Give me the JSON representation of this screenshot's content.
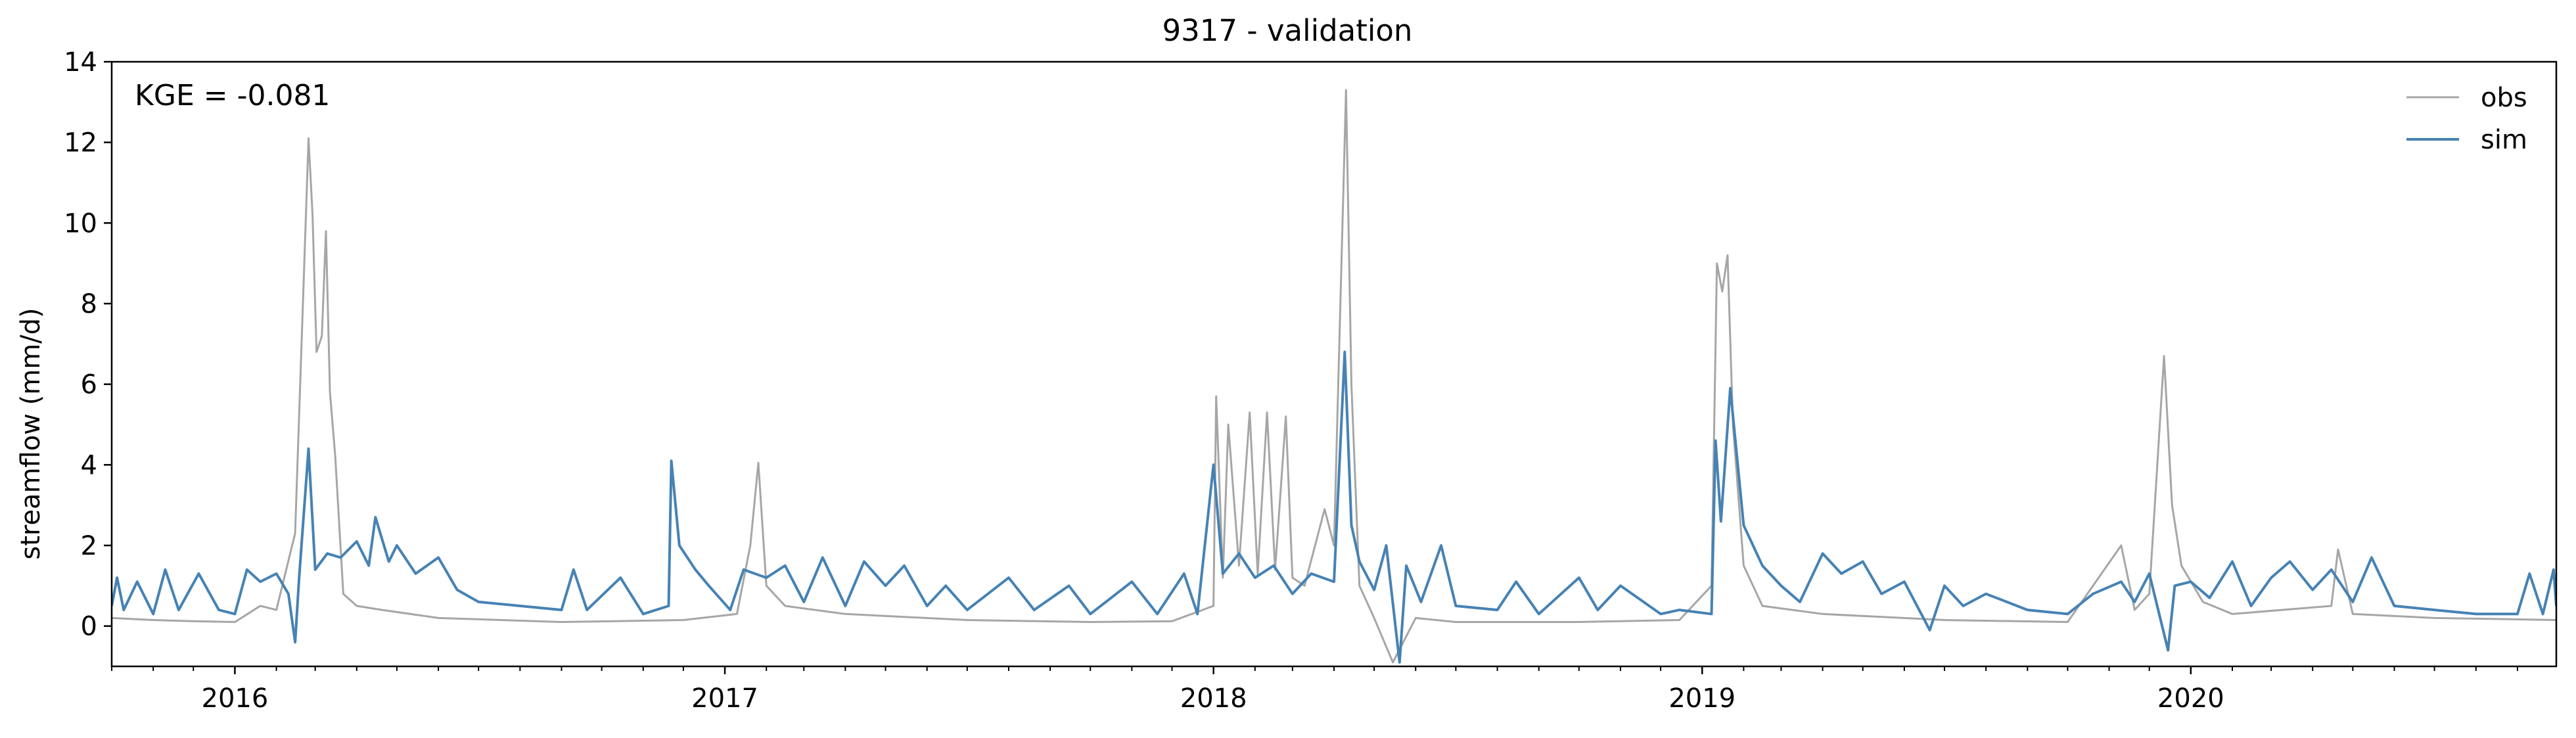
{
  "chart_data": {
    "type": "line",
    "title": "9317 - validation",
    "xlabel": "",
    "ylabel": "streamflow (mm/d)",
    "annotation": "KGE = -0.081",
    "xlim": [
      "2015-10-01",
      "2020-09-30"
    ],
    "ylim": [
      -1,
      14
    ],
    "yticks": [
      0,
      2,
      4,
      6,
      8,
      10,
      12,
      14
    ],
    "xticks": [
      {
        "date": "2016-01-01",
        "label": "2016"
      },
      {
        "date": "2017-01-01",
        "label": "2017"
      },
      {
        "date": "2018-01-01",
        "label": "2018"
      },
      {
        "date": "2019-01-01",
        "label": "2019"
      },
      {
        "date": "2020-01-01",
        "label": "2020"
      }
    ],
    "grid": false,
    "legend_position": "top-right",
    "series": [
      {
        "name": "obs",
        "color": "#a6a6a6",
        "points": [
          [
            "2015-10-01",
            0.2
          ],
          [
            "2015-11-01",
            0.15
          ],
          [
            "2015-12-01",
            0.12
          ],
          [
            "2016-01-01",
            0.1
          ],
          [
            "2016-01-20",
            0.5
          ],
          [
            "2016-02-01",
            0.4
          ],
          [
            "2016-02-15",
            2.3
          ],
          [
            "2016-02-25",
            12.1
          ],
          [
            "2016-02-28",
            10.2
          ],
          [
            "2016-03-02",
            6.8
          ],
          [
            "2016-03-06",
            7.2
          ],
          [
            "2016-03-09",
            9.8
          ],
          [
            "2016-03-12",
            5.8
          ],
          [
            "2016-03-16",
            4.2
          ],
          [
            "2016-03-22",
            0.8
          ],
          [
            "2016-04-01",
            0.5
          ],
          [
            "2016-04-20",
            0.4
          ],
          [
            "2016-06-01",
            0.2
          ],
          [
            "2016-09-01",
            0.1
          ],
          [
            "2016-12-01",
            0.15
          ],
          [
            "2017-01-10",
            0.3
          ],
          [
            "2017-01-20",
            2.0
          ],
          [
            "2017-01-26",
            4.05
          ],
          [
            "2017-02-01",
            1.0
          ],
          [
            "2017-02-15",
            0.5
          ],
          [
            "2017-04-01",
            0.3
          ],
          [
            "2017-07-01",
            0.15
          ],
          [
            "2017-10-01",
            0.1
          ],
          [
            "2017-12-01",
            0.12
          ],
          [
            "2018-01-01",
            0.5
          ],
          [
            "2018-01-03",
            5.7
          ],
          [
            "2018-01-08",
            1.2
          ],
          [
            "2018-01-12",
            5.0
          ],
          [
            "2018-01-20",
            1.5
          ],
          [
            "2018-01-28",
            5.3
          ],
          [
            "2018-02-03",
            1.3
          ],
          [
            "2018-02-10",
            5.3
          ],
          [
            "2018-02-16",
            1.4
          ],
          [
            "2018-02-24",
            5.2
          ],
          [
            "2018-03-01",
            1.2
          ],
          [
            "2018-03-10",
            1.0
          ],
          [
            "2018-03-25",
            2.9
          ],
          [
            "2018-04-01",
            2.0
          ],
          [
            "2018-04-10",
            13.3
          ],
          [
            "2018-04-14",
            6.0
          ],
          [
            "2018-04-20",
            1.0
          ],
          [
            "2018-05-01",
            0.2
          ],
          [
            "2018-05-15",
            -0.9
          ],
          [
            "2018-06-01",
            0.2
          ],
          [
            "2018-07-01",
            0.1
          ],
          [
            "2018-10-01",
            0.1
          ],
          [
            "2018-12-15",
            0.15
          ],
          [
            "2019-01-08",
            1.0
          ],
          [
            "2019-01-12",
            9.0
          ],
          [
            "2019-01-16",
            8.3
          ],
          [
            "2019-01-20",
            9.2
          ],
          [
            "2019-01-24",
            5.0
          ],
          [
            "2019-02-01",
            1.5
          ],
          [
            "2019-02-15",
            0.5
          ],
          [
            "2019-04-01",
            0.3
          ],
          [
            "2019-07-01",
            0.15
          ],
          [
            "2019-10-01",
            0.1
          ],
          [
            "2019-11-10",
            2.0
          ],
          [
            "2019-11-20",
            0.4
          ],
          [
            "2019-12-01",
            0.8
          ],
          [
            "2019-12-12",
            6.7
          ],
          [
            "2019-12-18",
            3.0
          ],
          [
            "2019-12-25",
            1.5
          ],
          [
            "2020-01-10",
            0.6
          ],
          [
            "2020-02-01",
            0.3
          ],
          [
            "2020-04-15",
            0.5
          ],
          [
            "2020-04-20",
            1.9
          ],
          [
            "2020-05-01",
            0.3
          ],
          [
            "2020-07-01",
            0.2
          ],
          [
            "2020-09-30",
            0.15
          ]
        ]
      },
      {
        "name": "sim",
        "color": "#4682b4",
        "points": [
          [
            "2015-10-01",
            0.5
          ],
          [
            "2015-10-05",
            1.2
          ],
          [
            "2015-10-10",
            0.4
          ],
          [
            "2015-10-20",
            1.1
          ],
          [
            "2015-11-01",
            0.3
          ],
          [
            "2015-11-10",
            1.4
          ],
          [
            "2015-11-20",
            0.4
          ],
          [
            "2015-12-05",
            1.3
          ],
          [
            "2015-12-20",
            0.4
          ],
          [
            "2016-01-01",
            0.3
          ],
          [
            "2016-01-10",
            1.4
          ],
          [
            "2016-01-20",
            1.1
          ],
          [
            "2016-02-01",
            1.3
          ],
          [
            "2016-02-10",
            0.8
          ],
          [
            "2016-02-15",
            -0.4
          ],
          [
            "2016-02-18",
            1.2
          ],
          [
            "2016-02-25",
            4.4
          ],
          [
            "2016-03-01",
            1.4
          ],
          [
            "2016-03-10",
            1.8
          ],
          [
            "2016-03-20",
            1.7
          ],
          [
            "2016-04-01",
            2.1
          ],
          [
            "2016-04-10",
            1.5
          ],
          [
            "2016-04-15",
            2.7
          ],
          [
            "2016-04-25",
            1.6
          ],
          [
            "2016-05-01",
            2.0
          ],
          [
            "2016-05-15",
            1.3
          ],
          [
            "2016-06-01",
            1.7
          ],
          [
            "2016-06-15",
            0.9
          ],
          [
            "2016-07-01",
            0.6
          ],
          [
            "2016-08-01",
            0.5
          ],
          [
            "2016-09-01",
            0.4
          ],
          [
            "2016-09-10",
            1.4
          ],
          [
            "2016-09-20",
            0.4
          ],
          [
            "2016-10-15",
            1.2
          ],
          [
            "2016-11-01",
            0.3
          ],
          [
            "2016-11-20",
            0.5
          ],
          [
            "2016-11-22",
            4.1
          ],
          [
            "2016-11-28",
            2.0
          ],
          [
            "2016-12-10",
            1.4
          ],
          [
            "2016-12-20",
            1.0
          ],
          [
            "2017-01-05",
            0.4
          ],
          [
            "2017-01-15",
            1.4
          ],
          [
            "2017-02-01",
            1.2
          ],
          [
            "2017-02-15",
            1.5
          ],
          [
            "2017-03-01",
            0.6
          ],
          [
            "2017-03-15",
            1.7
          ],
          [
            "2017-04-01",
            0.5
          ],
          [
            "2017-04-15",
            1.6
          ],
          [
            "2017-05-01",
            1.0
          ],
          [
            "2017-05-15",
            1.5
          ],
          [
            "2017-06-01",
            0.5
          ],
          [
            "2017-06-15",
            1.0
          ],
          [
            "2017-07-01",
            0.4
          ],
          [
            "2017-08-01",
            1.2
          ],
          [
            "2017-08-20",
            0.4
          ],
          [
            "2017-09-15",
            1.0
          ],
          [
            "2017-10-01",
            0.3
          ],
          [
            "2017-11-01",
            1.1
          ],
          [
            "2017-11-20",
            0.3
          ],
          [
            "2017-12-10",
            1.3
          ],
          [
            "2017-12-20",
            0.3
          ],
          [
            "2018-01-01",
            4.0
          ],
          [
            "2018-01-08",
            1.3
          ],
          [
            "2018-01-20",
            1.8
          ],
          [
            "2018-02-01",
            1.2
          ],
          [
            "2018-02-15",
            1.5
          ],
          [
            "2018-03-01",
            0.8
          ],
          [
            "2018-03-15",
            1.3
          ],
          [
            "2018-04-01",
            1.1
          ],
          [
            "2018-04-09",
            6.8
          ],
          [
            "2018-04-14",
            2.5
          ],
          [
            "2018-04-20",
            1.6
          ],
          [
            "2018-05-01",
            0.9
          ],
          [
            "2018-05-10",
            2.0
          ],
          [
            "2018-05-20",
            -0.9
          ],
          [
            "2018-05-25",
            1.5
          ],
          [
            "2018-06-05",
            0.6
          ],
          [
            "2018-06-20",
            2.0
          ],
          [
            "2018-07-01",
            0.5
          ],
          [
            "2018-08-01",
            0.4
          ],
          [
            "2018-08-15",
            1.1
          ],
          [
            "2018-09-01",
            0.3
          ],
          [
            "2018-10-01",
            1.2
          ],
          [
            "2018-10-15",
            0.4
          ],
          [
            "2018-11-01",
            1.0
          ],
          [
            "2018-12-01",
            0.3
          ],
          [
            "2018-12-15",
            0.4
          ],
          [
            "2019-01-08",
            0.3
          ],
          [
            "2019-01-11",
            4.6
          ],
          [
            "2019-01-15",
            2.6
          ],
          [
            "2019-01-22",
            5.9
          ],
          [
            "2019-02-01",
            2.5
          ],
          [
            "2019-02-15",
            1.5
          ],
          [
            "2019-03-01",
            1.0
          ],
          [
            "2019-03-15",
            0.6
          ],
          [
            "2019-04-01",
            1.8
          ],
          [
            "2019-04-15",
            1.3
          ],
          [
            "2019-05-01",
            1.6
          ],
          [
            "2019-05-15",
            0.8
          ],
          [
            "2019-06-01",
            1.1
          ],
          [
            "2019-06-20",
            -0.1
          ],
          [
            "2019-07-01",
            1.0
          ],
          [
            "2019-07-15",
            0.5
          ],
          [
            "2019-08-01",
            0.8
          ],
          [
            "2019-09-01",
            0.4
          ],
          [
            "2019-10-01",
            0.3
          ],
          [
            "2019-10-20",
            0.8
          ],
          [
            "2019-11-10",
            1.1
          ],
          [
            "2019-11-20",
            0.6
          ],
          [
            "2019-12-01",
            1.3
          ],
          [
            "2019-12-15",
            -0.6
          ],
          [
            "2019-12-20",
            1.0
          ],
          [
            "2020-01-01",
            1.1
          ],
          [
            "2020-01-15",
            0.7
          ],
          [
            "2020-02-01",
            1.6
          ],
          [
            "2020-02-15",
            0.5
          ],
          [
            "2020-03-01",
            1.2
          ],
          [
            "2020-03-15",
            1.6
          ],
          [
            "2020-04-01",
            0.9
          ],
          [
            "2020-04-15",
            1.4
          ],
          [
            "2020-05-01",
            0.6
          ],
          [
            "2020-05-15",
            1.7
          ],
          [
            "2020-06-01",
            0.5
          ],
          [
            "2020-07-01",
            0.4
          ],
          [
            "2020-08-01",
            0.3
          ],
          [
            "2020-09-01",
            0.3
          ],
          [
            "2020-09-10",
            1.3
          ],
          [
            "2020-09-20",
            0.3
          ],
          [
            "2020-09-28",
            1.4
          ],
          [
            "2020-09-30",
            0.5
          ]
        ]
      }
    ]
  }
}
